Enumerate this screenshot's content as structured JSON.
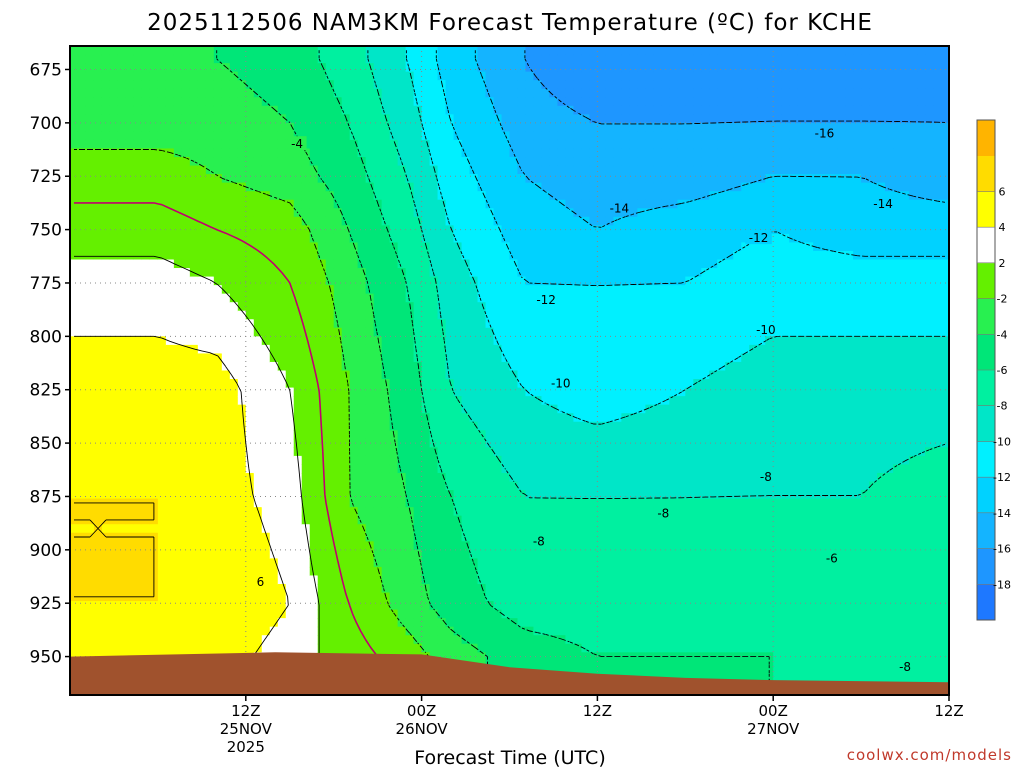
{
  "chart_data": {
    "type": "heatmap",
    "title": "2025112506 NAM3KM Forecast Temperature (ºC) for KCHE",
    "xlabel": "Forecast Time (UTC)",
    "ylabel": "",
    "y_scale": "pressure (hPa), inverted",
    "ylim": [
      968,
      664
    ],
    "y_ticks": [
      675,
      700,
      725,
      750,
      775,
      800,
      825,
      850,
      875,
      900,
      925,
      950
    ],
    "y_tick_labels": [
      "675",
      "700",
      "725",
      "750",
      "775",
      "800",
      "825",
      "850",
      "875",
      "900",
      "925",
      "950"
    ],
    "xlim_hours": [
      -6,
      54
    ],
    "x_ticks": [
      {
        "hour": 6,
        "lines": [
          "12Z",
          "25NOV",
          "2025"
        ]
      },
      {
        "hour": 18,
        "lines": [
          "00Z",
          "26NOV"
        ]
      },
      {
        "hour": 30,
        "lines": [
          "12Z"
        ]
      },
      {
        "hour": 42,
        "lines": [
          "00Z",
          "27NOV"
        ]
      },
      {
        "hour": 54,
        "lines": [
          "12Z"
        ]
      }
    ],
    "grid": true,
    "terrain_color": "#a0522d",
    "colorbar": {
      "levels": [
        -20,
        -18,
        -16,
        -14,
        -12,
        -10,
        -8,
        -6,
        -4,
        -2,
        2,
        4,
        6,
        8
      ],
      "colors": [
        "#1e78ff",
        "#1e96ff",
        "#14b4ff",
        "#00d2ff",
        "#00f0ff",
        "#00e6c8",
        "#00f0a0",
        "#00e678",
        "#28f050",
        "#64f000",
        "#ffffff",
        "#ffff00",
        "#ffdc00",
        "#ffb400"
      ],
      "labels": [
        "-18",
        "-16",
        "-14",
        "-12",
        "-10",
        "-8",
        "-6",
        "-4",
        "-2",
        "2",
        "4",
        "6"
      ],
      "label_levels": [
        -18,
        -16,
        -14,
        -12,
        -10,
        -8,
        -6,
        -4,
        -2,
        2,
        4,
        6
      ]
    },
    "series": [
      {
        "t": -6,
        "p": 670,
        "v": -3
      },
      {
        "t": -6,
        "p": 700,
        "v": -3
      },
      {
        "t": -6,
        "p": 725,
        "v": -1
      },
      {
        "t": -6,
        "p": 750,
        "v": 1
      },
      {
        "t": -6,
        "p": 775,
        "v": 3
      },
      {
        "t": -6,
        "p": 825,
        "v": 5
      },
      {
        "t": -6,
        "p": 875,
        "v": 6
      },
      {
        "t": -6,
        "p": 925,
        "v": 6
      },
      {
        "t": -6,
        "p": 950,
        "v": 5
      },
      {
        "t": 0,
        "p": 670,
        "v": -3
      },
      {
        "t": 0,
        "p": 700,
        "v": -3
      },
      {
        "t": 0,
        "p": 725,
        "v": -1
      },
      {
        "t": 0,
        "p": 750,
        "v": 1
      },
      {
        "t": 0,
        "p": 775,
        "v": 3
      },
      {
        "t": 0,
        "p": 825,
        "v": 5
      },
      {
        "t": 0,
        "p": 875,
        "v": 6
      },
      {
        "t": 0,
        "p": 925,
        "v": 6
      },
      {
        "t": 0,
        "p": 950,
        "v": 5
      },
      {
        "t": 4,
        "p": 670,
        "v": -4
      },
      {
        "t": 4,
        "p": 700,
        "v": -3
      },
      {
        "t": 4,
        "p": 725,
        "v": -2
      },
      {
        "t": 4,
        "p": 750,
        "v": 0
      },
      {
        "t": 4,
        "p": 775,
        "v": 2
      },
      {
        "t": 4,
        "p": 825,
        "v": 5
      },
      {
        "t": 4,
        "p": 875,
        "v": 5
      },
      {
        "t": 4,
        "p": 925,
        "v": 6
      },
      {
        "t": 4,
        "p": 950,
        "v": 5
      },
      {
        "t": 9,
        "p": 670,
        "v": -5
      },
      {
        "t": 9,
        "p": 700,
        "v": -4
      },
      {
        "t": 9,
        "p": 725,
        "v": -3
      },
      {
        "t": 9,
        "p": 750,
        "v": -1
      },
      {
        "t": 9,
        "p": 775,
        "v": 0
      },
      {
        "t": 9,
        "p": 825,
        "v": 2
      },
      {
        "t": 9,
        "p": 875,
        "v": 3
      },
      {
        "t": 9,
        "p": 925,
        "v": 4
      },
      {
        "t": 9,
        "p": 950,
        "v": 3
      },
      {
        "t": 13,
        "p": 670,
        "v": -7
      },
      {
        "t": 13,
        "p": 700,
        "v": -6
      },
      {
        "t": 13,
        "p": 725,
        "v": -5
      },
      {
        "t": 13,
        "p": 750,
        "v": -4
      },
      {
        "t": 13,
        "p": 775,
        "v": -3
      },
      {
        "t": 13,
        "p": 825,
        "v": -2
      },
      {
        "t": 13,
        "p": 875,
        "v": -2
      },
      {
        "t": 13,
        "p": 925,
        "v": 0
      },
      {
        "t": 13,
        "p": 950,
        "v": 1
      },
      {
        "t": 17,
        "p": 670,
        "v": -10
      },
      {
        "t": 17,
        "p": 700,
        "v": -9
      },
      {
        "t": 17,
        "p": 725,
        "v": -8
      },
      {
        "t": 17,
        "p": 750,
        "v": -7
      },
      {
        "t": 17,
        "p": 775,
        "v": -6
      },
      {
        "t": 17,
        "p": 825,
        "v": -5
      },
      {
        "t": 17,
        "p": 875,
        "v": -4
      },
      {
        "t": 17,
        "p": 925,
        "v": -3
      },
      {
        "t": 17,
        "p": 950,
        "v": -1
      },
      {
        "t": 20,
        "p": 670,
        "v": -13
      },
      {
        "t": 20,
        "p": 700,
        "v": -12
      },
      {
        "t": 20,
        "p": 725,
        "v": -11
      },
      {
        "t": 20,
        "p": 750,
        "v": -10
      },
      {
        "t": 20,
        "p": 775,
        "v": -9
      },
      {
        "t": 20,
        "p": 825,
        "v": -8
      },
      {
        "t": 20,
        "p": 875,
        "v": -6
      },
      {
        "t": 20,
        "p": 925,
        "v": -5
      },
      {
        "t": 20,
        "p": 950,
        "v": -3
      },
      {
        "t": 25,
        "p": 670,
        "v": -16
      },
      {
        "t": 25,
        "p": 700,
        "v": -15
      },
      {
        "t": 25,
        "p": 725,
        "v": -14
      },
      {
        "t": 25,
        "p": 750,
        "v": -13
      },
      {
        "t": 25,
        "p": 775,
        "v": -12
      },
      {
        "t": 25,
        "p": 825,
        "v": -10
      },
      {
        "t": 25,
        "p": 875,
        "v": -8
      },
      {
        "t": 25,
        "p": 925,
        "v": -7
      },
      {
        "t": 25,
        "p": 950,
        "v": -5
      },
      {
        "t": 30,
        "p": 670,
        "v": -18
      },
      {
        "t": 30,
        "p": 700,
        "v": -16
      },
      {
        "t": 30,
        "p": 725,
        "v": -15
      },
      {
        "t": 30,
        "p": 750,
        "v": -14
      },
      {
        "t": 30,
        "p": 775,
        "v": -12
      },
      {
        "t": 30,
        "p": 825,
        "v": -11
      },
      {
        "t": 30,
        "p": 875,
        "v": -8
      },
      {
        "t": 30,
        "p": 925,
        "v": -7
      },
      {
        "t": 30,
        "p": 950,
        "v": -6
      },
      {
        "t": 36,
        "p": 670,
        "v": -18
      },
      {
        "t": 36,
        "p": 700,
        "v": -16
      },
      {
        "t": 36,
        "p": 725,
        "v": -15
      },
      {
        "t": 36,
        "p": 750,
        "v": -13
      },
      {
        "t": 36,
        "p": 775,
        "v": -12
      },
      {
        "t": 36,
        "p": 825,
        "v": -10
      },
      {
        "t": 36,
        "p": 875,
        "v": -8
      },
      {
        "t": 36,
        "p": 925,
        "v": -7
      },
      {
        "t": 36,
        "p": 950,
        "v": -6
      },
      {
        "t": 42,
        "p": 670,
        "v": -17
      },
      {
        "t": 42,
        "p": 700,
        "v": -16
      },
      {
        "t": 42,
        "p": 725,
        "v": -14
      },
      {
        "t": 42,
        "p": 750,
        "v": -12
      },
      {
        "t": 42,
        "p": 775,
        "v": -11
      },
      {
        "t": 42,
        "p": 825,
        "v": -9
      },
      {
        "t": 42,
        "p": 875,
        "v": -8
      },
      {
        "t": 42,
        "p": 925,
        "v": -6
      },
      {
        "t": 42,
        "p": 950,
        "v": -6
      },
      {
        "t": 48,
        "p": 670,
        "v": -17
      },
      {
        "t": 48,
        "p": 700,
        "v": -16
      },
      {
        "t": 48,
        "p": 725,
        "v": -14
      },
      {
        "t": 48,
        "p": 750,
        "v": -13
      },
      {
        "t": 48,
        "p": 775,
        "v": -11
      },
      {
        "t": 48,
        "p": 825,
        "v": -9
      },
      {
        "t": 48,
        "p": 875,
        "v": -8
      },
      {
        "t": 48,
        "p": 925,
        "v": -6
      },
      {
        "t": 48,
        "p": 950,
        "v": -7
      },
      {
        "t": 54,
        "p": 670,
        "v": -17
      },
      {
        "t": 54,
        "p": 700,
        "v": -16
      },
      {
        "t": 54,
        "p": 725,
        "v": -15
      },
      {
        "t": 54,
        "p": 750,
        "v": -13
      },
      {
        "t": 54,
        "p": 775,
        "v": -11
      },
      {
        "t": 54,
        "p": 825,
        "v": -9
      },
      {
        "t": 54,
        "p": 875,
        "v": -7
      },
      {
        "t": 54,
        "p": 925,
        "v": -6
      },
      {
        "t": 54,
        "p": 950,
        "v": -7
      }
    ],
    "annotations": [
      {
        "text": "-4",
        "t": 9.5,
        "p": 710
      },
      {
        "text": "-16",
        "t": 45.5,
        "p": 705
      },
      {
        "text": "-14",
        "t": 31.5,
        "p": 740
      },
      {
        "text": "-14",
        "t": 49.5,
        "p": 738
      },
      {
        "text": "-12",
        "t": 41,
        "p": 754
      },
      {
        "text": "-12",
        "t": 26.5,
        "p": 783
      },
      {
        "text": "-10",
        "t": 41.5,
        "p": 797
      },
      {
        "text": "-10",
        "t": 27.5,
        "p": 822
      },
      {
        "text": "-8",
        "t": 41.5,
        "p": 866
      },
      {
        "text": "-8",
        "t": 34.5,
        "p": 883
      },
      {
        "text": "-8",
        "t": 26,
        "p": 896
      },
      {
        "text": "-6",
        "t": 46,
        "p": 904
      },
      {
        "text": "-8",
        "t": 51,
        "p": 955
      },
      {
        "text": "6",
        "t": 7,
        "p": 915
      }
    ]
  },
  "footer": {
    "credit": "coolwx.com/models"
  }
}
